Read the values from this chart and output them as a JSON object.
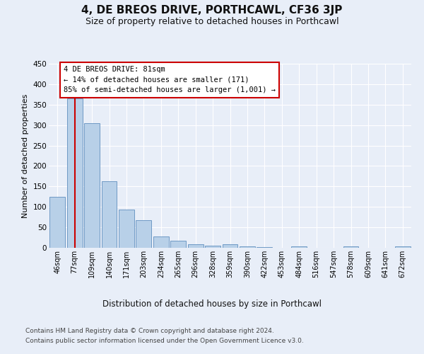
{
  "title": "4, DE BREOS DRIVE, PORTHCAWL, CF36 3JP",
  "subtitle": "Size of property relative to detached houses in Porthcawl",
  "xlabel": "Distribution of detached houses by size in Porthcawl",
  "ylabel": "Number of detached properties",
  "categories": [
    "46sqm",
    "77sqm",
    "109sqm",
    "140sqm",
    "171sqm",
    "203sqm",
    "234sqm",
    "265sqm",
    "296sqm",
    "328sqm",
    "359sqm",
    "390sqm",
    "422sqm",
    "453sqm",
    "484sqm",
    "516sqm",
    "547sqm",
    "578sqm",
    "609sqm",
    "641sqm",
    "672sqm"
  ],
  "values": [
    125,
    365,
    305,
    163,
    93,
    68,
    28,
    18,
    8,
    6,
    8,
    4,
    1,
    0,
    4,
    0,
    0,
    4,
    0,
    0,
    3
  ],
  "bar_color": "#b8d0e8",
  "bar_edge_color": "#5f8fbf",
  "annotation_box_text": "4 DE BREOS DRIVE: 81sqm\n← 14% of detached houses are smaller (171)\n85% of semi-detached houses are larger (1,001) →",
  "annotation_box_color": "#ffffff",
  "annotation_box_edge_color": "#cc0000",
  "vline_color": "#cc0000",
  "vline_x": 1.0,
  "ylim": [
    0,
    450
  ],
  "yticks": [
    0,
    50,
    100,
    150,
    200,
    250,
    300,
    350,
    400,
    450
  ],
  "footer_line1": "Contains HM Land Registry data © Crown copyright and database right 2024.",
  "footer_line2": "Contains public sector information licensed under the Open Government Licence v3.0.",
  "background_color": "#e8eef8",
  "grid_color": "#ffffff",
  "title_fontsize": 11,
  "subtitle_fontsize": 9,
  "xlabel_fontsize": 8.5,
  "ylabel_fontsize": 8,
  "tick_fontsize": 7,
  "ytick_fontsize": 7.5,
  "footer_fontsize": 6.5,
  "ann_fontsize": 7.5
}
